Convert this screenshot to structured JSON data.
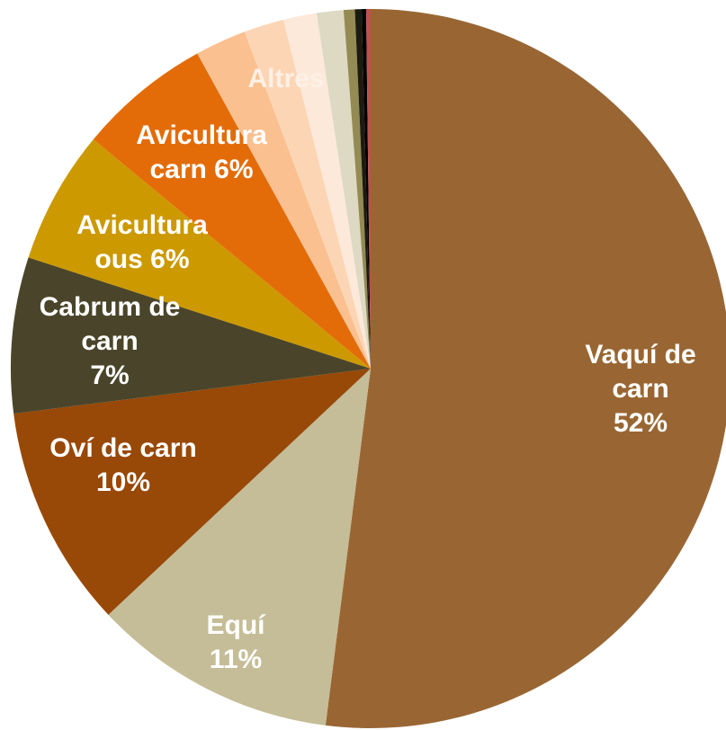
{
  "chart_data": {
    "type": "pie",
    "categories": [
      "Vaquí de carn",
      "Equí",
      "Oví de carn",
      "Cabrum de carn",
      "Avicultura ous",
      "Avicultura carn",
      null,
      null,
      null,
      null,
      null,
      null,
      null,
      null
    ],
    "values": [
      52,
      11,
      10,
      7,
      6,
      6,
      2.3,
      1.8,
      1.5,
      1.2,
      0.5,
      0.3,
      0.2,
      0.2
    ],
    "value_labels": [
      "52%",
      "11%",
      "10%",
      "7%",
      "6%",
      "6%",
      null,
      null,
      null,
      null,
      null,
      null,
      null,
      null
    ],
    "colors": [
      "#996633",
      "#c4bd97",
      "#984807",
      "#4a452a",
      "#cc9900",
      "#e36c09",
      "#fac090",
      "#fcd5b5",
      "#fde9d9",
      "#ddd9c3",
      "#948a54",
      "#1d1b10",
      "#000000",
      "#c0504d"
    ],
    "annotations": [
      "Altres"
    ]
  }
}
